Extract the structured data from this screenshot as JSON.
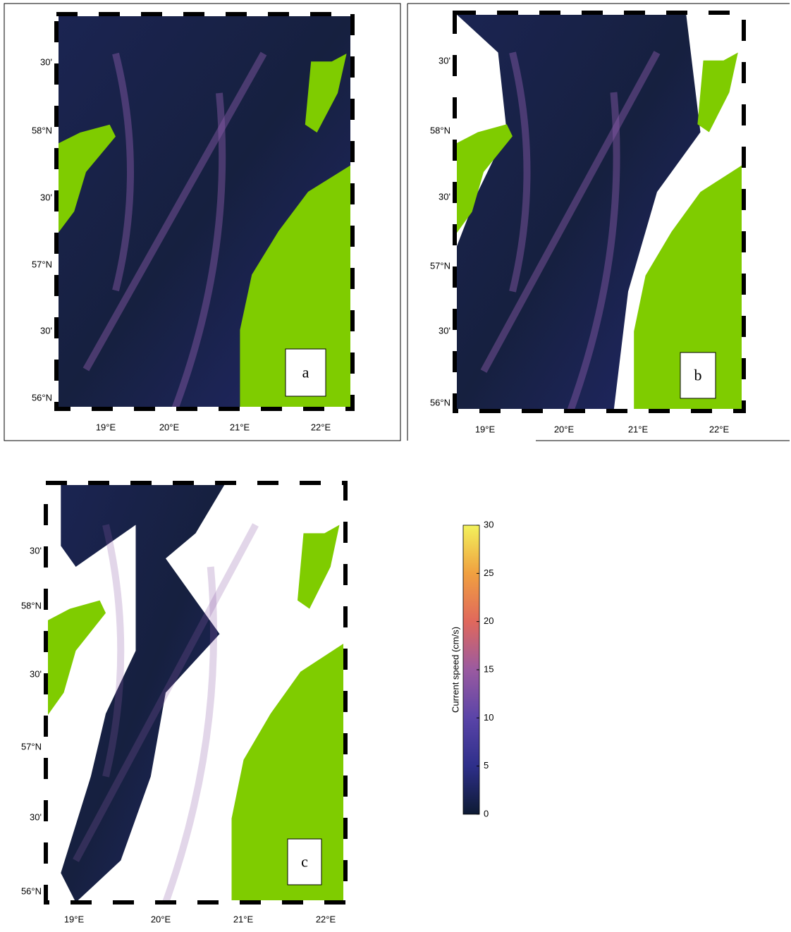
{
  "panels": [
    {
      "label": "a",
      "lat_labels": [
        "30'",
        "58°N",
        "30'",
        "57°N",
        "30'",
        "56°N"
      ],
      "lon_labels": [
        "19°E",
        "20°E",
        "21°E",
        "22°E"
      ]
    },
    {
      "label": "b",
      "lat_labels": [
        "30'",
        "58°N",
        "30'",
        "57°N",
        "30'",
        "56°N"
      ],
      "lon_labels": [
        "19°E",
        "20°E",
        "21°E",
        "22°E"
      ]
    },
    {
      "label": "c",
      "lat_labels": [
        "30'",
        "58°N",
        "30'",
        "57°N",
        "30'",
        "56°N"
      ],
      "lon_labels": [
        "19°E",
        "20°E",
        "21°E",
        "22°E"
      ]
    }
  ],
  "colorbar": {
    "label": "Current speed (cm/s)",
    "lim": [
      0,
      30
    ],
    "ticks": [
      0,
      5,
      10,
      15,
      20,
      25,
      30
    ],
    "colors": [
      "#0d1a33",
      "#2e2f8a",
      "#5a44a8",
      "#9a5aa0",
      "#e0685c",
      "#f0a040",
      "#f2f25c"
    ]
  }
}
